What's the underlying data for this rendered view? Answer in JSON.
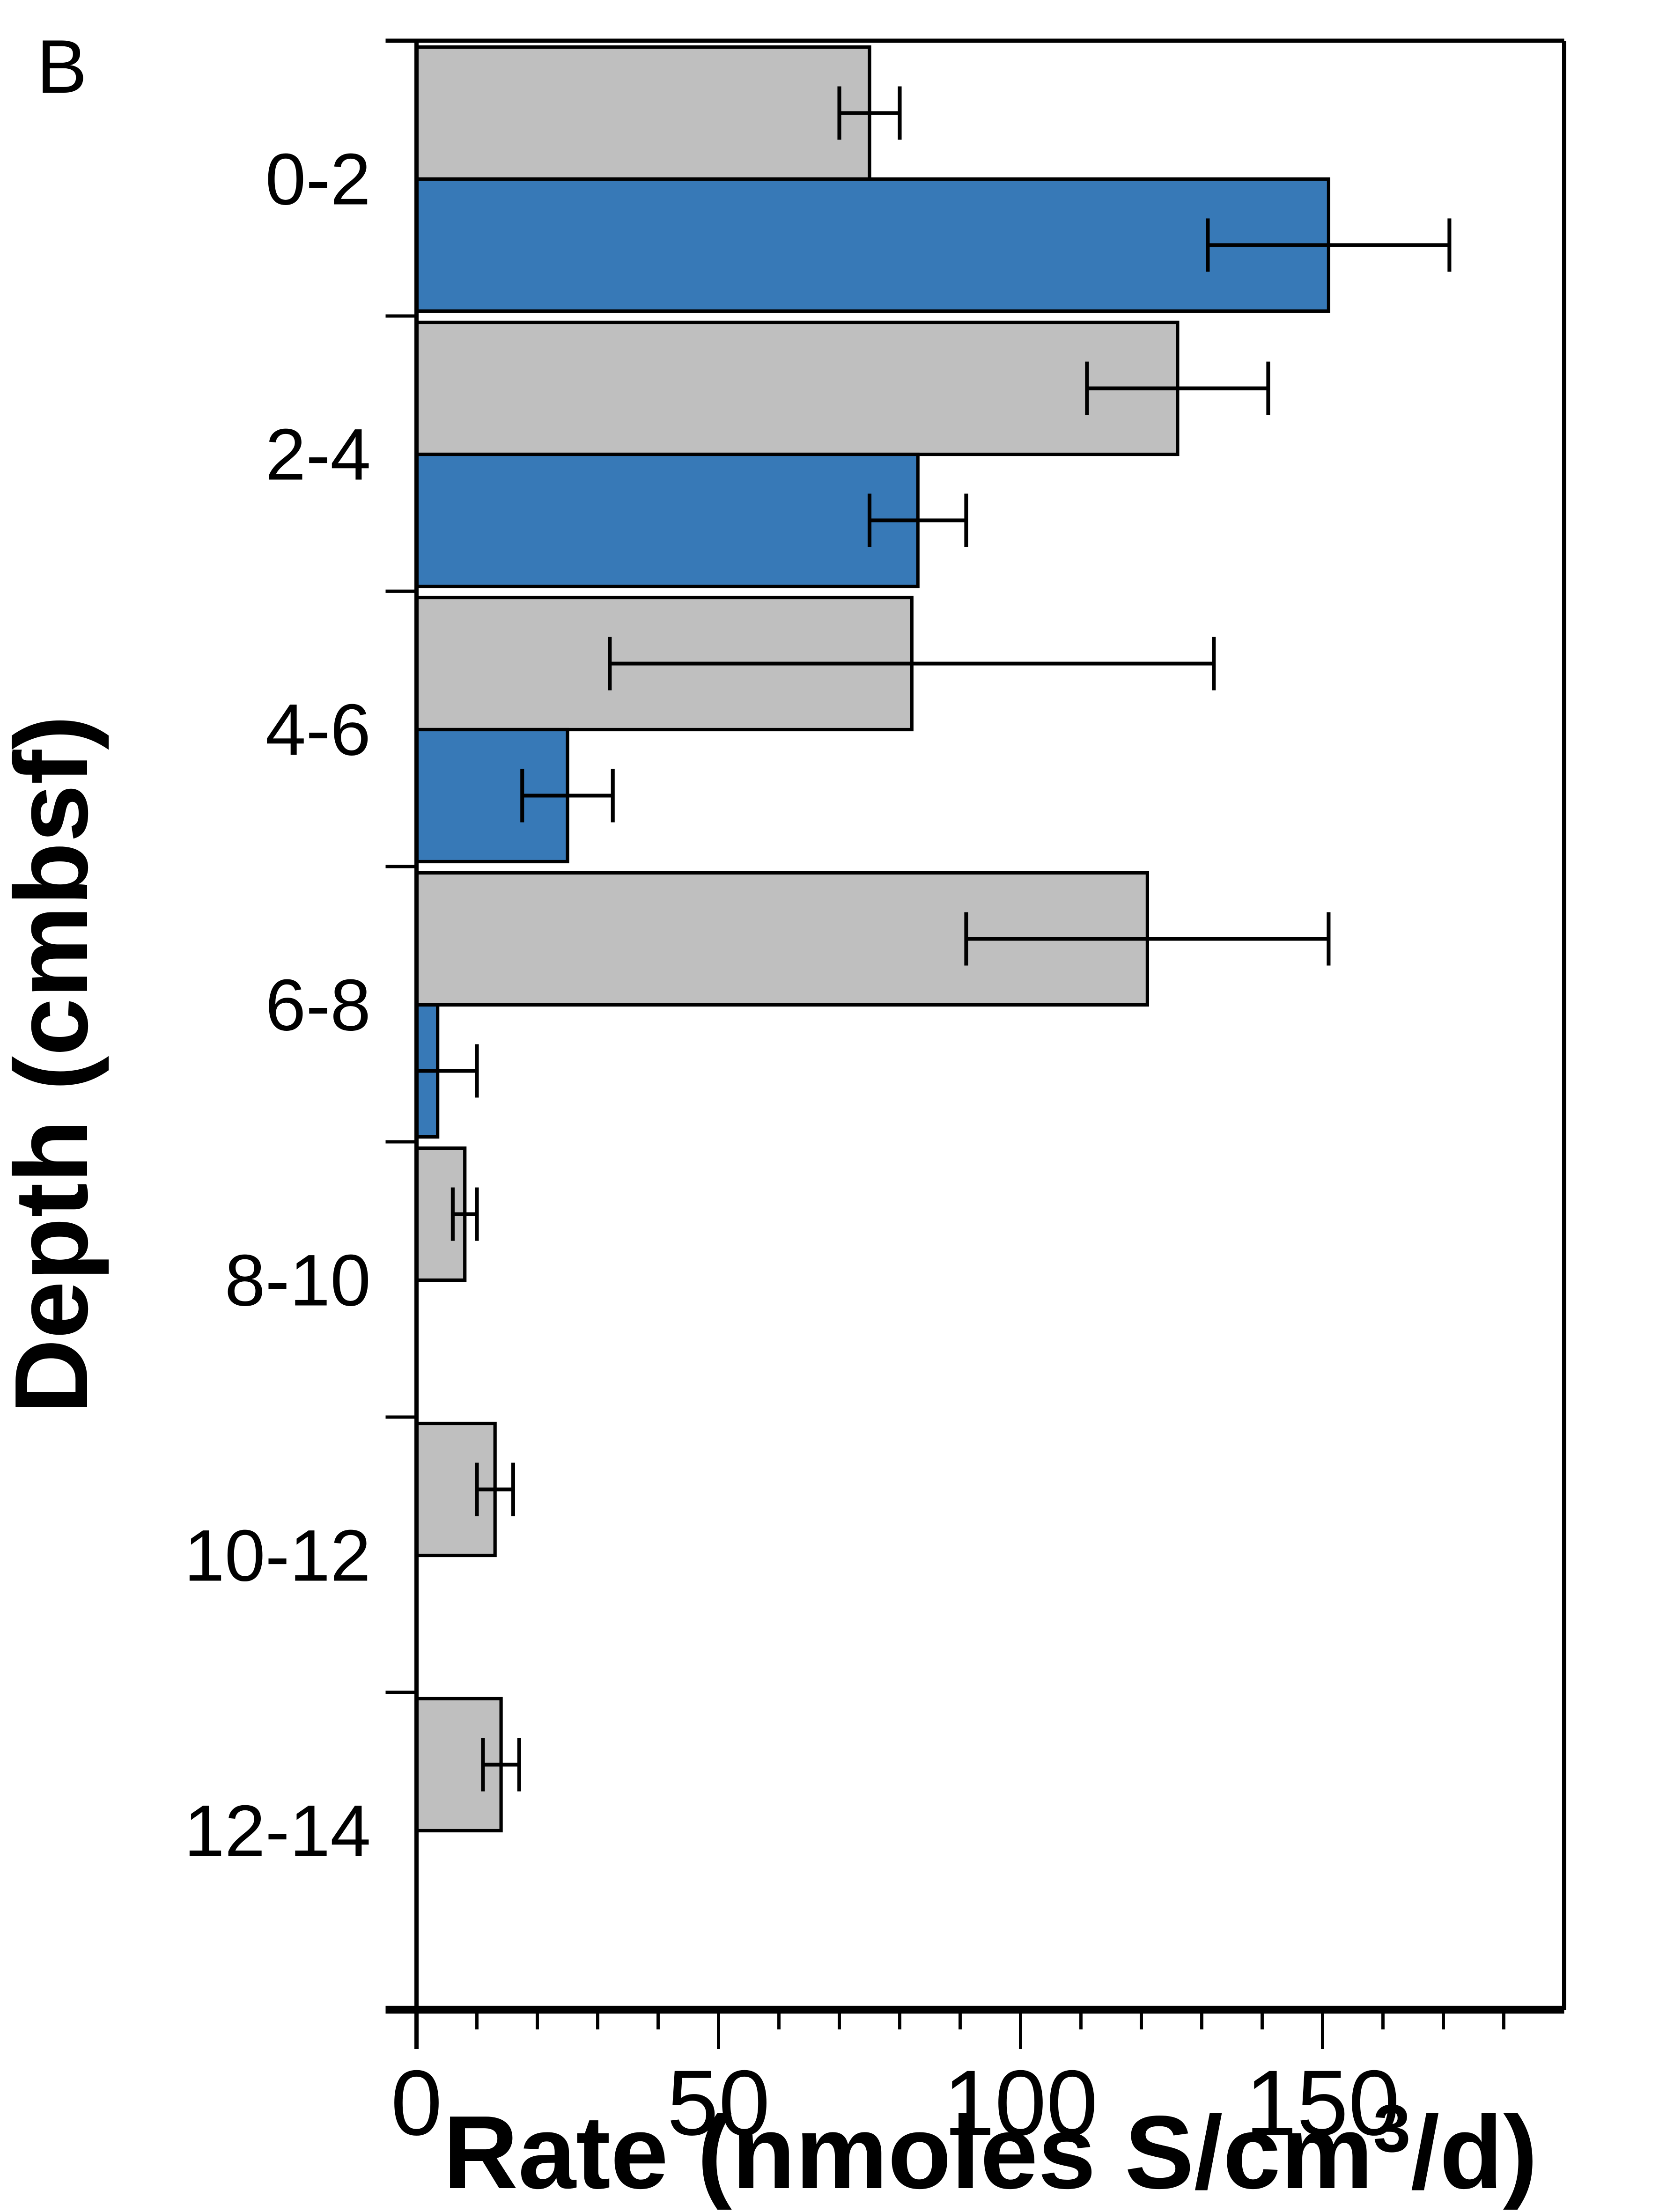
{
  "panel_label": "B",
  "chart_data": {
    "type": "bar",
    "orientation": "horizontal",
    "title": "",
    "xlabel": "Rate (nmoles S/cm3/d)",
    "xlabel_prefix": "Rate (nmoles S/cm",
    "xlabel_superscript": "3",
    "xlabel_suffix": "/d)",
    "ylabel": "Depth (cmbsf)",
    "categories": [
      "0-2",
      "2-4",
      "4-6",
      "6-8",
      "8-10",
      "10-12",
      "12-14"
    ],
    "series": [
      {
        "name": "gray-bars",
        "color": "#bfbfbf",
        "values": [
          75,
          126,
          82,
          121,
          8,
          13,
          14
        ],
        "errors": [
          5,
          15,
          50,
          30,
          2,
          3,
          3
        ]
      },
      {
        "name": "blue-bars",
        "color": "#3779b7",
        "values": [
          151,
          83,
          25,
          3.5,
          null,
          null,
          null
        ],
        "errors": [
          20,
          8,
          7.5,
          6.5,
          null,
          null,
          null
        ]
      }
    ],
    "xlim": [
      0,
      190
    ],
    "x_major_ticks": [
      0,
      50,
      100,
      150
    ],
    "x_tick_labels": [
      "0",
      "50",
      "100",
      "150"
    ],
    "x_minor_step": 10,
    "grid": false,
    "legend_position": "none",
    "bar_border_color": "#000000",
    "axis_color": "#000000"
  }
}
